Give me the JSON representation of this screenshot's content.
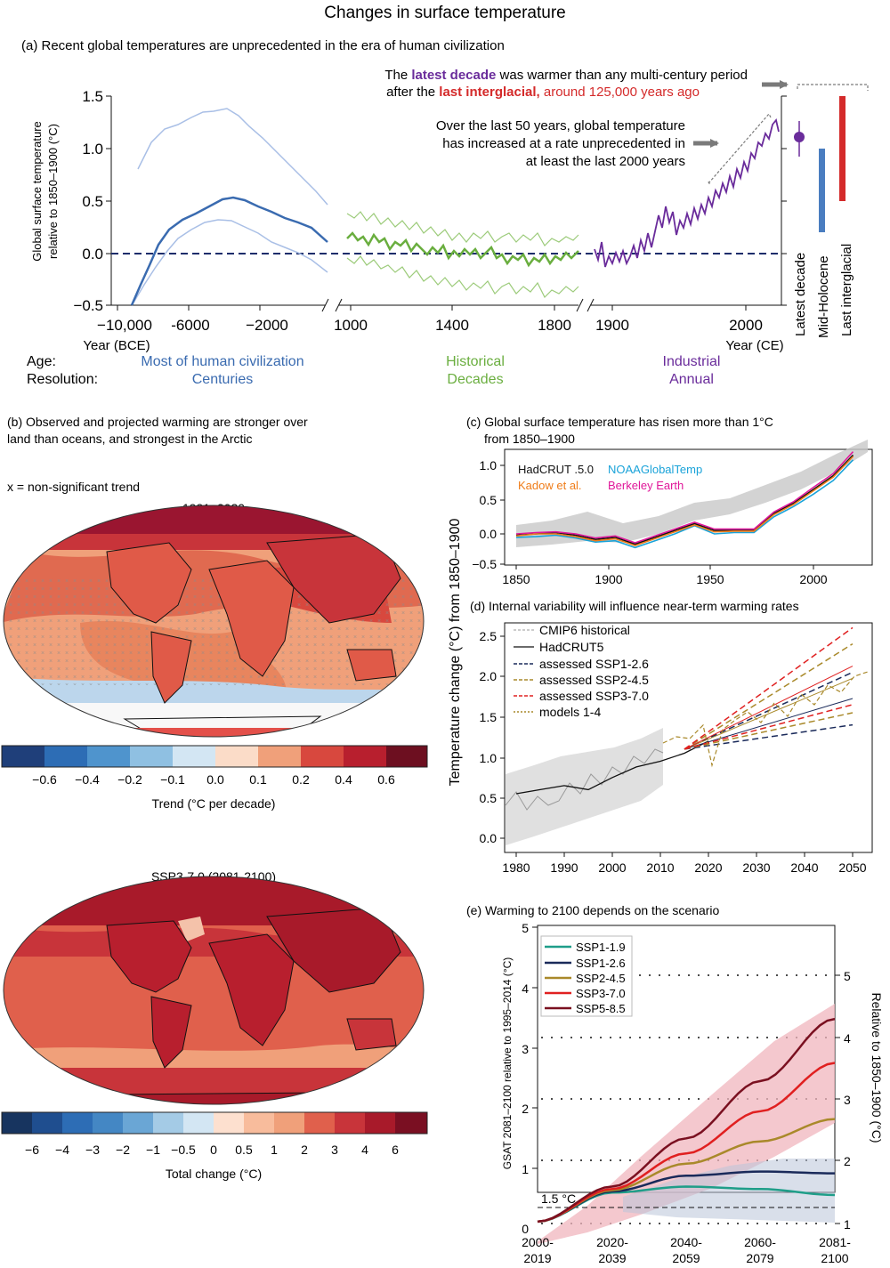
{
  "title": "Changes in surface temperature",
  "panel_a": {
    "heading": "(a) Recent global temperatures are unprecedented in the era of human civilization",
    "ylabel_line1": "Global surface temperature",
    "ylabel_line2": "relative to 1850–1900 (°C)",
    "y_ticks": [
      "1.5",
      "1.0",
      "0.5",
      "0.0",
      "−0.5"
    ],
    "x_ticks_seg1": [
      "−10,000",
      "-6000",
      "−2000"
    ],
    "x_unit_seg1": "Year (BCE)",
    "x_ticks_seg2": [
      "1000",
      "1400",
      "1800"
    ],
    "x_ticks_seg3": [
      "1900",
      "2000"
    ],
    "x_unit_seg3": "Year (CE)",
    "ann1_pre": "The ",
    "ann1_decade": "latest decade",
    "ann1_post": " was warmer than any multi-century period",
    "ann2_pre": "after the ",
    "ann2_interglacial": "last interglacial,",
    "ann2_post": " around 125,000 years ago",
    "ann3_line1": "Over the last 50 years, global temperature",
    "ann3_line2": "has increased at a rate unprecedented in",
    "ann3_line3": "at least the last 2000 years",
    "bar_labels": [
      "Latest decade",
      "Mid-Holocene",
      "Last interglacial"
    ],
    "age_label": "Age:",
    "resolution_label": "Resolution:",
    "seg1_age": "Most of human civilization",
    "seg1_res": "Centuries",
    "seg2_age": "Historical",
    "seg2_res": "Decades",
    "seg3_age": "Industrial",
    "seg3_res": "Annual"
  },
  "panel_b": {
    "heading_line1": "(b) Observed and projected warming are stronger over",
    "heading_line2": "land than oceans, and strongest in the Arctic",
    "note": "x = non-significant trend",
    "map1_title": "1981–2020",
    "map1_cbar_labels": [
      "−0.6",
      "−0.4",
      "−0.2",
      "−0.1",
      "0.0",
      "0.1",
      "0.2",
      "0.4",
      "0.6"
    ],
    "map1_cbar_title": "Trend (°C per decade)",
    "map2_title": "SSP3-7.0 (2081-2100)",
    "map2_cbar_labels": [
      "−6",
      "−4",
      "−3",
      "−2",
      "−1",
      "−0.5",
      "0",
      "0.5",
      "1",
      "2",
      "3",
      "4",
      "6"
    ],
    "map2_cbar_title": "Total change (°C)"
  },
  "panel_c": {
    "heading_line1": "(c) Global surface temperature has risen more than 1°C",
    "heading_line2": "from 1850–1900",
    "legend": [
      "HadCRUT .5.0",
      "NOAAGlobalTemp",
      "Kadow et al.",
      "Berkeley Earth"
    ],
    "y_ticks": [
      "1.0",
      "0.5",
      "0.0",
      "−0.5"
    ],
    "x_ticks": [
      "1850",
      "1900",
      "1950",
      "2000"
    ]
  },
  "shared_ylabel": "Temperature change (°C) from 1850–1900",
  "panel_d": {
    "heading": "(d) Internal variability will influence near-term warming rates",
    "legend": [
      "CMIP6 historical",
      "HadCRUT5",
      "assessed SSP1-2.6",
      "assessed SSP2-4.5",
      "assessed SSP3-7.0",
      "models 1-4"
    ],
    "y_ticks": [
      "2.5",
      "2.0",
      "1.5",
      "1.0",
      "0.5",
      "0.0"
    ],
    "x_ticks": [
      "1980",
      "1990",
      "2000",
      "2010",
      "2020",
      "2030",
      "2040",
      "2050"
    ]
  },
  "panel_e": {
    "heading": "(e) Warming to 2100 depends on the scenario",
    "ylabel_left": "GSAT 2081–2100 relative to 1995–2014 (°C)",
    "ylabel_right": "Relative to 1850–1900 (°C)",
    "y_ticks_left": [
      "5",
      "4",
      "3",
      "2",
      "1",
      "0"
    ],
    "y_ticks_right": [
      "5",
      "4",
      "3",
      "2",
      "1"
    ],
    "x_ticks": [
      [
        "2000-",
        "2019"
      ],
      [
        "2020-",
        "2039"
      ],
      [
        "2040-",
        "2059"
      ],
      [
        "2060-",
        "2079"
      ],
      [
        "2081-",
        "2100"
      ]
    ],
    "threshold_label": "1.5 °C",
    "legend": [
      "SSP1-1.9",
      "SSP1-2.6",
      "SSP2-4.5",
      "SSP3-7.0",
      "SSP5-8.5"
    ]
  },
  "colors": {
    "bce": "#3a6bb0",
    "bce_light": "#a9bfe6",
    "historical": "#6aae3f",
    "historical_light": "#9ccb7a",
    "industrial": "#6a2c9b",
    "interglacial": "#d42a2a",
    "holocene": "#4a7dc0",
    "hadcrut": "#111111",
    "noaa": "#1aa3d9",
    "kadow": "#ef7d1a",
    "berkeley": "#e0189a",
    "ssp119": "#1f9e89",
    "ssp126": "#1a2a5a",
    "ssp245": "#a9892a",
    "ssp370": "#e02020",
    "ssp585": "#7a1020"
  },
  "chart_data": [
    {
      "type": "line",
      "panel": "a",
      "segments": [
        {
          "name": "Most of human civilization",
          "x": [
            -10000,
            -9000,
            -8000,
            -7000,
            -6000,
            -5000,
            -4500,
            -4000,
            -3000,
            -2000,
            -1000,
            0
          ],
          "y": [
            -0.55,
            -0.25,
            0.15,
            0.35,
            0.45,
            0.52,
            0.54,
            0.5,
            0.42,
            0.32,
            0.22,
            0.12
          ]
        },
        {
          "name": "Historical",
          "x": [
            1000,
            1100,
            1200,
            1300,
            1400,
            1500,
            1600,
            1700,
            1800,
            1850
          ],
          "y": [
            0.08,
            0.12,
            0.05,
            0.02,
            0.03,
            -0.02,
            -0.05,
            -0.03,
            -0.05,
            0.0
          ]
        },
        {
          "name": "Industrial",
          "x": [
            1850,
            1880,
            1900,
            1920,
            1940,
            1960,
            1980,
            2000,
            2010,
            2020
          ],
          "y": [
            0.0,
            -0.02,
            -0.05,
            0.0,
            0.2,
            0.1,
            0.3,
            0.6,
            0.85,
            1.2
          ]
        }
      ],
      "bars": [
        {
          "label": "Latest decade",
          "value": 1.1
        },
        {
          "label": "Mid-Holocene",
          "range": [
            0.2,
            1.0
          ]
        },
        {
          "label": "Last interglacial",
          "range": [
            0.5,
            1.5
          ]
        }
      ],
      "ylim": [
        -0.5,
        1.5
      ]
    },
    {
      "type": "line",
      "panel": "c",
      "x": [
        1850,
        1860,
        1870,
        1880,
        1890,
        1900,
        1910,
        1920,
        1930,
        1940,
        1950,
        1960,
        1970,
        1980,
        1990,
        2000,
        2010,
        2020
      ],
      "series": [
        {
          "name": "HadCRUT .5.0",
          "values": [
            -0.02,
            0.0,
            0.02,
            -0.02,
            -0.08,
            -0.05,
            -0.15,
            -0.05,
            0.05,
            0.15,
            0.05,
            0.05,
            0.05,
            0.3,
            0.45,
            0.65,
            0.85,
            1.15
          ]
        },
        {
          "name": "NOAAGlobalTemp",
          "values": [
            -0.05,
            -0.04,
            -0.02,
            -0.06,
            -0.12,
            -0.1,
            -0.2,
            -0.1,
            0.0,
            0.12,
            0.0,
            0.02,
            0.02,
            0.25,
            0.4,
            0.58,
            0.78,
            1.08
          ]
        },
        {
          "name": "Kadow et al.",
          "values": [
            -0.03,
            0.0,
            0.0,
            -0.04,
            -0.1,
            -0.07,
            -0.17,
            -0.07,
            0.03,
            0.13,
            0.03,
            0.04,
            0.04,
            0.28,
            0.43,
            0.63,
            0.83,
            1.13
          ]
        },
        {
          "name": "Berkeley Earth",
          "values": [
            0.0,
            0.02,
            0.03,
            0.0,
            -0.06,
            -0.03,
            -0.13,
            -0.03,
            0.07,
            0.17,
            0.07,
            0.07,
            0.07,
            0.32,
            0.47,
            0.68,
            0.88,
            1.2
          ]
        }
      ],
      "ylim": [
        -0.5,
        1.25
      ]
    },
    {
      "type": "line",
      "panel": "d",
      "x": [
        1980,
        1985,
        1990,
        1995,
        2000,
        2005,
        2010,
        2015,
        2020
      ],
      "series": [
        {
          "name": "HadCRUT5",
          "values": [
            0.55,
            0.6,
            0.65,
            0.6,
            0.75,
            0.88,
            0.95,
            1.05,
            1.2
          ]
        }
      ],
      "projections": [
        {
          "name": "assessed SSP1-2.6",
          "range_2050": [
            1.4,
            2.05
          ]
        },
        {
          "name": "assessed SSP2-4.5",
          "range_2050": [
            1.55,
            2.4
          ]
        },
        {
          "name": "assessed SSP3-7.0",
          "range_2050": [
            1.65,
            2.6
          ]
        }
      ],
      "ylim": [
        -0.1,
        2.65
      ]
    },
    {
      "type": "line",
      "panel": "e",
      "categories": [
        "2000-2019",
        "2020-2039",
        "2040-2059",
        "2060-2079",
        "2081-2100"
      ],
      "series": [
        {
          "name": "SSP1-1.9",
          "values": [
            0.12,
            0.6,
            0.7,
            0.66,
            0.56
          ]
        },
        {
          "name": "SSP1-2.6",
          "values": [
            0.12,
            0.62,
            0.88,
            0.95,
            0.92
          ]
        },
        {
          "name": "SSP2-4.5",
          "values": [
            0.12,
            0.64,
            1.08,
            1.45,
            1.82
          ]
        },
        {
          "name": "SSP3-7.0",
          "values": [
            0.12,
            0.66,
            1.25,
            1.95,
            2.75
          ]
        },
        {
          "name": "SSP5-8.5",
          "values": [
            0.12,
            0.7,
            1.5,
            2.45,
            3.48
          ]
        }
      ],
      "ylim": [
        -0.2,
        5
      ],
      "threshold": 0.63
    }
  ]
}
